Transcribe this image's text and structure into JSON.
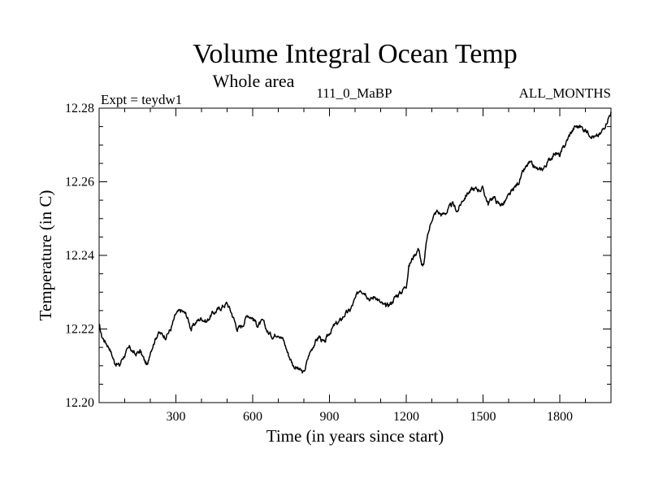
{
  "chart_data": {
    "type": "line",
    "title": "Volume Integral Ocean Temp",
    "subtitle": "Whole area",
    "annotations": {
      "left": "Expt = teydw1",
      "center": "111_0_MaBP",
      "right": "ALL_MONTHS"
    },
    "xlabel": "Time (in years since start)",
    "ylabel": "Temperature (in C)",
    "xlim": [
      0,
      2000
    ],
    "ylim": [
      12.2,
      12.28
    ],
    "xticks": [
      300,
      600,
      900,
      1200,
      1500,
      1800
    ],
    "xtick_labels": [
      "300",
      "600",
      "900",
      "1200",
      "1500",
      "1800"
    ],
    "yticks": [
      12.2,
      12.22,
      12.24,
      12.26,
      12.28
    ],
    "ytick_labels": [
      "12.20",
      "12.22",
      "12.24",
      "12.26",
      "12.28"
    ],
    "series": [
      {
        "name": "Volume Integral Ocean Temp",
        "color": "#000000",
        "x": [
          0,
          10,
          20,
          40,
          60,
          80,
          90,
          100,
          120,
          140,
          160,
          180,
          190,
          200,
          230,
          260,
          280,
          300,
          320,
          340,
          360,
          380,
          400,
          420,
          440,
          460,
          480,
          500,
          520,
          540,
          560,
          580,
          600,
          620,
          640,
          660,
          680,
          700,
          720,
          740,
          760,
          780,
          800,
          820,
          840,
          860,
          880,
          900,
          920,
          940,
          960,
          980,
          1000,
          1020,
          1040,
          1060,
          1080,
          1100,
          1120,
          1140,
          1160,
          1180,
          1200,
          1210,
          1230,
          1250,
          1260,
          1270,
          1280,
          1300,
          1320,
          1340,
          1360,
          1380,
          1400,
          1420,
          1440,
          1460,
          1480,
          1500,
          1520,
          1540,
          1560,
          1580,
          1600,
          1620,
          1640,
          1660,
          1680,
          1700,
          1720,
          1740,
          1760,
          1780,
          1800,
          1820,
          1840,
          1860,
          1880,
          1900,
          1920,
          1940,
          1960,
          1980,
          2000
        ],
        "y": [
          12.221,
          12.218,
          12.217,
          12.215,
          12.211,
          12.21,
          12.212,
          12.213,
          12.215,
          12.213,
          12.214,
          12.211,
          12.21,
          12.214,
          12.219,
          12.218,
          12.22,
          12.224,
          12.225,
          12.224,
          12.22,
          12.222,
          12.223,
          12.222,
          12.224,
          12.225,
          12.226,
          12.227,
          12.224,
          12.22,
          12.221,
          12.224,
          12.223,
          12.221,
          12.222,
          12.219,
          12.218,
          12.219,
          12.217,
          12.213,
          12.21,
          12.209,
          12.208,
          12.213,
          12.216,
          12.218,
          12.216,
          12.219,
          12.221,
          12.222,
          12.224,
          12.225,
          12.228,
          12.231,
          12.23,
          12.228,
          12.229,
          12.227,
          12.226,
          12.227,
          12.229,
          12.23,
          12.232,
          12.237,
          12.24,
          12.242,
          12.237,
          12.238,
          12.244,
          12.25,
          12.252,
          12.251,
          12.252,
          12.254,
          12.252,
          12.255,
          12.257,
          12.258,
          12.258,
          12.258,
          12.254,
          12.256,
          12.254,
          12.254,
          12.256,
          12.258,
          12.26,
          12.263,
          12.265,
          12.264,
          12.263,
          12.264,
          12.266,
          12.268,
          12.267,
          12.27,
          12.273,
          12.275,
          12.275,
          12.274,
          12.273,
          12.272,
          12.273,
          12.276,
          12.279
        ]
      }
    ]
  }
}
